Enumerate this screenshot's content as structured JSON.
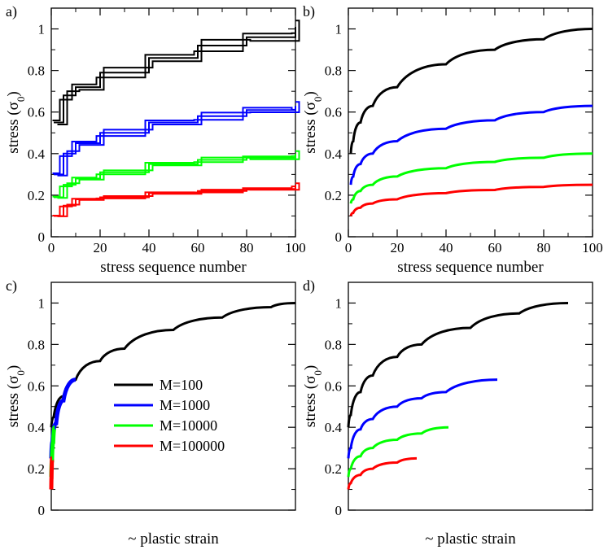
{
  "figure": {
    "legend": [
      {
        "label": "M=100",
        "color": "#000000"
      },
      {
        "label": "M=1000",
        "color": "#0000ff"
      },
      {
        "label": "M=10000",
        "color": "#00ff00"
      },
      {
        "label": "M=100000",
        "color": "#ff0000"
      }
    ]
  },
  "chart_data": [
    {
      "panel": "a)",
      "type": "line",
      "style": "staircase (three noisy realizations per series)",
      "xlabel": "stress sequence number",
      "ylabel": "stress (σ0)",
      "xlim": [
        0,
        100
      ],
      "ylim": [
        0,
        1.1
      ],
      "xticks": [
        "0",
        "20",
        "40",
        "60",
        "80",
        "100"
      ],
      "yticks": [
        "0",
        "0.2",
        "0.4",
        "0.6",
        "0.8",
        "1"
      ],
      "series": [
        {
          "name": "M=100",
          "color": "#000000",
          "x": [
            1,
            5,
            10,
            20,
            40,
            60,
            80,
            100
          ],
          "y": [
            0.55,
            0.68,
            0.72,
            0.79,
            0.86,
            0.92,
            0.96,
            1.01
          ]
        },
        {
          "name": "M=1000",
          "color": "#0000ff",
          "x": [
            1,
            5,
            10,
            20,
            40,
            60,
            80,
            100
          ],
          "y": [
            0.3,
            0.4,
            0.45,
            0.5,
            0.55,
            0.58,
            0.61,
            0.63
          ]
        },
        {
          "name": "M=10000",
          "color": "#00ff00",
          "x": [
            1,
            5,
            10,
            20,
            40,
            60,
            80,
            100
          ],
          "y": [
            0.19,
            0.25,
            0.28,
            0.31,
            0.35,
            0.37,
            0.38,
            0.4
          ]
        },
        {
          "name": "M=100000",
          "color": "#ff0000",
          "x": [
            1,
            5,
            10,
            20,
            40,
            60,
            80,
            100
          ],
          "y": [
            0.1,
            0.15,
            0.18,
            0.19,
            0.21,
            0.22,
            0.23,
            0.25
          ]
        }
      ]
    },
    {
      "panel": "b)",
      "type": "line",
      "xlabel": "stress sequence number",
      "ylabel": "stress (σ0)",
      "xlim": [
        0,
        100
      ],
      "ylim": [
        0,
        1.1
      ],
      "xticks": [
        "0",
        "20",
        "40",
        "60",
        "80",
        "100"
      ],
      "yticks": [
        "0",
        "0.2",
        "0.4",
        "0.6",
        "0.8",
        "1"
      ],
      "series": [
        {
          "name": "M=100",
          "color": "#000000",
          "x": [
            1,
            2,
            5,
            10,
            20,
            40,
            60,
            80,
            100
          ],
          "y": [
            0.4,
            0.46,
            0.55,
            0.63,
            0.72,
            0.83,
            0.9,
            0.95,
            1.0
          ]
        },
        {
          "name": "M=1000",
          "color": "#0000ff",
          "x": [
            1,
            2,
            5,
            10,
            20,
            40,
            60,
            80,
            100
          ],
          "y": [
            0.25,
            0.29,
            0.35,
            0.4,
            0.46,
            0.52,
            0.56,
            0.6,
            0.63
          ]
        },
        {
          "name": "M=10000",
          "color": "#00ff00",
          "x": [
            1,
            2,
            5,
            10,
            20,
            40,
            60,
            80,
            100
          ],
          "y": [
            0.16,
            0.18,
            0.22,
            0.25,
            0.29,
            0.33,
            0.36,
            0.38,
            0.4
          ]
        },
        {
          "name": "M=100000",
          "color": "#ff0000",
          "x": [
            1,
            2,
            5,
            10,
            20,
            40,
            60,
            80,
            100
          ],
          "y": [
            0.1,
            0.115,
            0.14,
            0.16,
            0.18,
            0.21,
            0.225,
            0.24,
            0.25
          ]
        }
      ]
    },
    {
      "panel": "c)",
      "type": "line",
      "xlabel": "~ plastic strain",
      "ylabel": "stress (σ0)",
      "xlim": [
        0,
        1
      ],
      "ylim": [
        0,
        1.1
      ],
      "xticks": [],
      "yticks": [
        "0",
        "0.2",
        "0.4",
        "0.6",
        "0.8",
        "1"
      ],
      "series": [
        {
          "name": "M=100",
          "color": "#000000",
          "x": [
            0.0,
            0.01,
            0.05,
            0.1,
            0.2,
            0.3,
            0.5,
            0.7,
            0.9,
            1.0
          ],
          "y": [
            0.4,
            0.45,
            0.55,
            0.63,
            0.72,
            0.78,
            0.87,
            0.93,
            0.98,
            1.0
          ]
        },
        {
          "name": "M=1000",
          "color": "#0000ff",
          "x": [
            0.0,
            0.005,
            0.02,
            0.05,
            0.1
          ],
          "y": [
            0.25,
            0.33,
            0.42,
            0.53,
            0.63
          ]
        },
        {
          "name": "M=10000",
          "color": "#00ff00",
          "x": [
            0.0,
            0.003,
            0.008,
            0.014
          ],
          "y": [
            0.16,
            0.24,
            0.33,
            0.4
          ]
        },
        {
          "name": "M=100000",
          "color": "#ff0000",
          "x": [
            0.0,
            0.001,
            0.002,
            0.003
          ],
          "y": [
            0.1,
            0.16,
            0.21,
            0.25
          ]
        }
      ]
    },
    {
      "panel": "d)",
      "type": "line",
      "xlabel": "~ plastic strain",
      "ylabel": "stress (σ0)",
      "xlim": [
        0,
        1
      ],
      "ylim": [
        0,
        1.1
      ],
      "xticks": [],
      "yticks": [
        "0",
        "0.2",
        "0.4",
        "0.6",
        "0.8",
        "1"
      ],
      "series": [
        {
          "name": "M=100",
          "color": "#000000",
          "x": [
            0.0,
            0.01,
            0.05,
            0.1,
            0.2,
            0.3,
            0.5,
            0.7,
            0.9
          ],
          "y": [
            0.4,
            0.46,
            0.57,
            0.65,
            0.74,
            0.8,
            0.88,
            0.95,
            1.0
          ]
        },
        {
          "name": "M=1000",
          "color": "#0000ff",
          "x": [
            0.0,
            0.01,
            0.05,
            0.1,
            0.2,
            0.3,
            0.4,
            0.61
          ],
          "y": [
            0.25,
            0.3,
            0.39,
            0.44,
            0.5,
            0.54,
            0.57,
            0.63
          ]
        },
        {
          "name": "M=10000",
          "color": "#00ff00",
          "x": [
            0.0,
            0.01,
            0.05,
            0.1,
            0.2,
            0.3,
            0.41
          ],
          "y": [
            0.16,
            0.2,
            0.26,
            0.3,
            0.34,
            0.37,
            0.4
          ]
        },
        {
          "name": "M=100000",
          "color": "#ff0000",
          "x": [
            0.0,
            0.01,
            0.05,
            0.1,
            0.2,
            0.28
          ],
          "y": [
            0.1,
            0.13,
            0.17,
            0.2,
            0.23,
            0.25
          ]
        }
      ]
    }
  ]
}
